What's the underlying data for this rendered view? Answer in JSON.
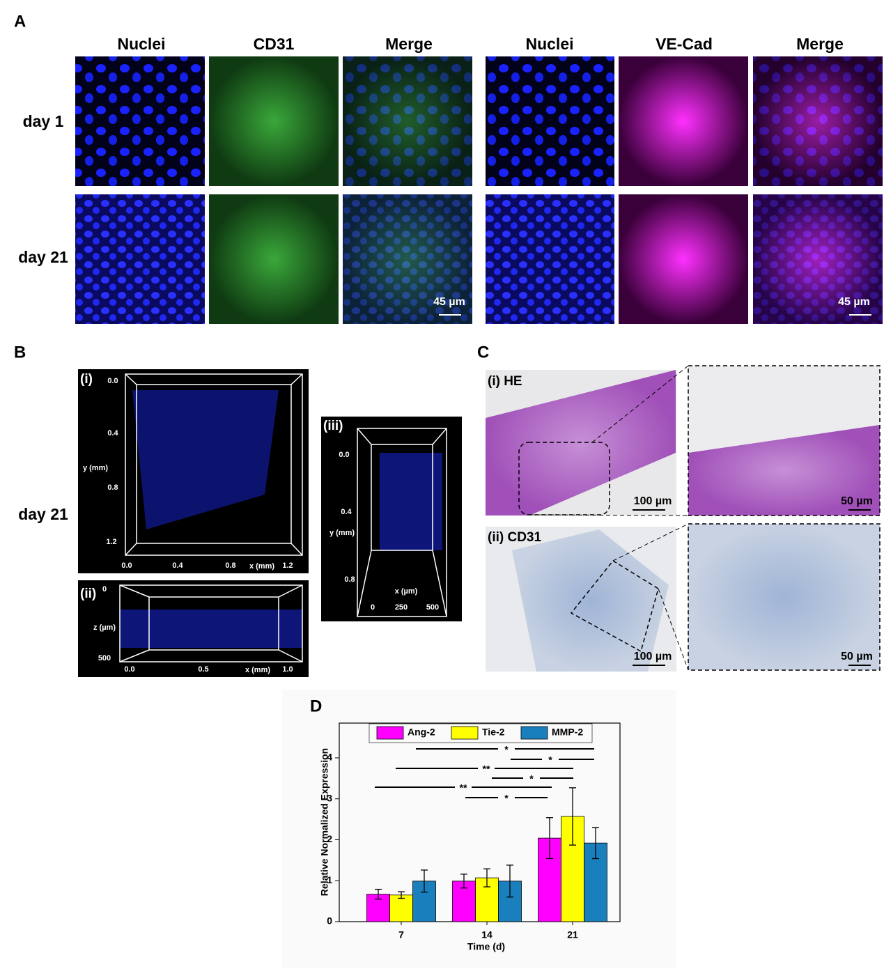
{
  "panel_a": {
    "label": "A",
    "columns": [
      "Nuclei",
      "CD31",
      "Merge",
      "Nuclei",
      "VE-Cad",
      "Merge"
    ],
    "rows": [
      "day 1",
      "day 21"
    ],
    "scale_bars": [
      "45 µm",
      "45 µm"
    ]
  },
  "panel_b": {
    "label": "B",
    "row_label": "day 21",
    "views": [
      {
        "label": "(i)",
        "y_label": "y (mm)",
        "y_ticks": [
          "0.0",
          "0.4",
          "0.8",
          "1.2"
        ],
        "x_label": "x (mm)",
        "x_ticks": [
          "0.0",
          "0.4",
          "0.8",
          "1.2"
        ]
      },
      {
        "label": "(ii)",
        "y_label": "z (µm)",
        "y_ticks": [
          "0",
          "500"
        ],
        "x_label": "x (mm)",
        "x_ticks": [
          "0.0",
          "0.5",
          "1.0"
        ]
      },
      {
        "label": "(iii)",
        "y_label": "y (mm)",
        "y_ticks": [
          "0.0",
          "0.4",
          "0.8"
        ],
        "x_label": "x (µm)",
        "x_ticks": [
          "0",
          "250",
          "500"
        ]
      }
    ]
  },
  "panel_c": {
    "label": "C",
    "rows": [
      {
        "label": "(i) HE",
        "scale_bars": [
          "100 µm",
          "50 µm"
        ]
      },
      {
        "label": "(ii) CD31",
        "scale_bars": [
          "100 µm",
          "50 µm"
        ]
      }
    ]
  },
  "chart_data": {
    "type": "bar",
    "panel_label": "D",
    "x_label": "Time (d)",
    "y_label": "Relative Normalized Expression",
    "categories": [
      "7",
      "14",
      "21"
    ],
    "series": [
      {
        "name": "Ang-2",
        "color": "#ff00ff",
        "values": [
          0.67,
          0.99,
          2.04
        ],
        "errors": [
          0.12,
          0.17,
          0.5
        ]
      },
      {
        "name": "Tie-2",
        "color": "#ffff00",
        "values": [
          0.65,
          1.07,
          2.57
        ],
        "errors": [
          0.08,
          0.22,
          0.7
        ]
      },
      {
        "name": "MMP-2",
        "color": "#1a7fbd",
        "values": [
          0.99,
          0.99,
          1.92
        ],
        "errors": [
          0.27,
          0.39,
          0.38
        ]
      }
    ],
    "ylim": [
      0,
      4.85
    ],
    "yticks": [
      0,
      1,
      2,
      3,
      4
    ],
    "legend": "top",
    "annotations": [
      "*",
      "*",
      "**",
      "*",
      "**",
      "*"
    ]
  }
}
